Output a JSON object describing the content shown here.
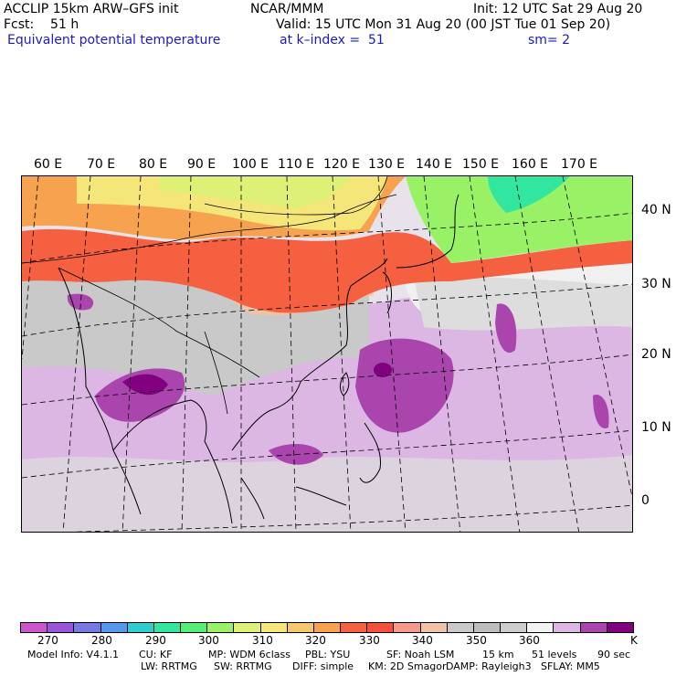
{
  "header": {
    "line1_left": "ACCLIP 15km ARW–GFS init",
    "line1_center": "NCAR/MMM",
    "line1_right": "Init: 12 UTC Sat 29 Aug 20",
    "line2_left": "Fcst:    51 h",
    "line2_right": "Valid: 15 UTC Mon 31 Aug 20 (00 JST Tue 01 Sep 20)",
    "line3_left": "Equivalent potential temperature",
    "line3_mid": "at k–index =  51",
    "line3_right": "sm= 2"
  },
  "map": {
    "longitude_labels": [
      "60 E",
      "70 E",
      "80 E",
      "90 E",
      "100 E",
      "110 E",
      "120 E",
      "130 E",
      "140 E",
      "150 E",
      "160 E",
      "170 E"
    ],
    "latitude_labels": [
      "40 N",
      "30 N",
      "20 N",
      "10 N",
      "0"
    ]
  },
  "colorbar": {
    "colors": [
      "#cc55cc",
      "#9955d9",
      "#7777e6",
      "#5599ee",
      "#33cccc",
      "#33e6a0",
      "#55ee77",
      "#99f266",
      "#dff077",
      "#f5e67a",
      "#f7c76e",
      "#f7a24e",
      "#f46040",
      "#f4503a",
      "#f59a8a",
      "#f2c2a6",
      "#c9c9c9",
      "#bdbdbd",
      "#cccccc",
      "#f2f2f2",
      "#dcb7e4",
      "#a945ad",
      "#800080"
    ],
    "tick_labels": [
      "270",
      "280",
      "290",
      "300",
      "310",
      "320",
      "330",
      "340",
      "350",
      "360"
    ],
    "unit": "K"
  },
  "footer": {
    "line1": [
      "Model Info: V4.1.1",
      "CU: KF",
      "MP: WDM 6class",
      "PBL: YSU",
      "SF: Noah LSM",
      "15 km",
      "51 levels",
      "90 sec"
    ],
    "line2": [
      "LW: RRTMG",
      "SW: RRTMG",
      "DIFF: simple",
      "KM: 2D Smagor",
      "DAMP: Rayleigh3",
      "SFLAY: MM5"
    ]
  }
}
